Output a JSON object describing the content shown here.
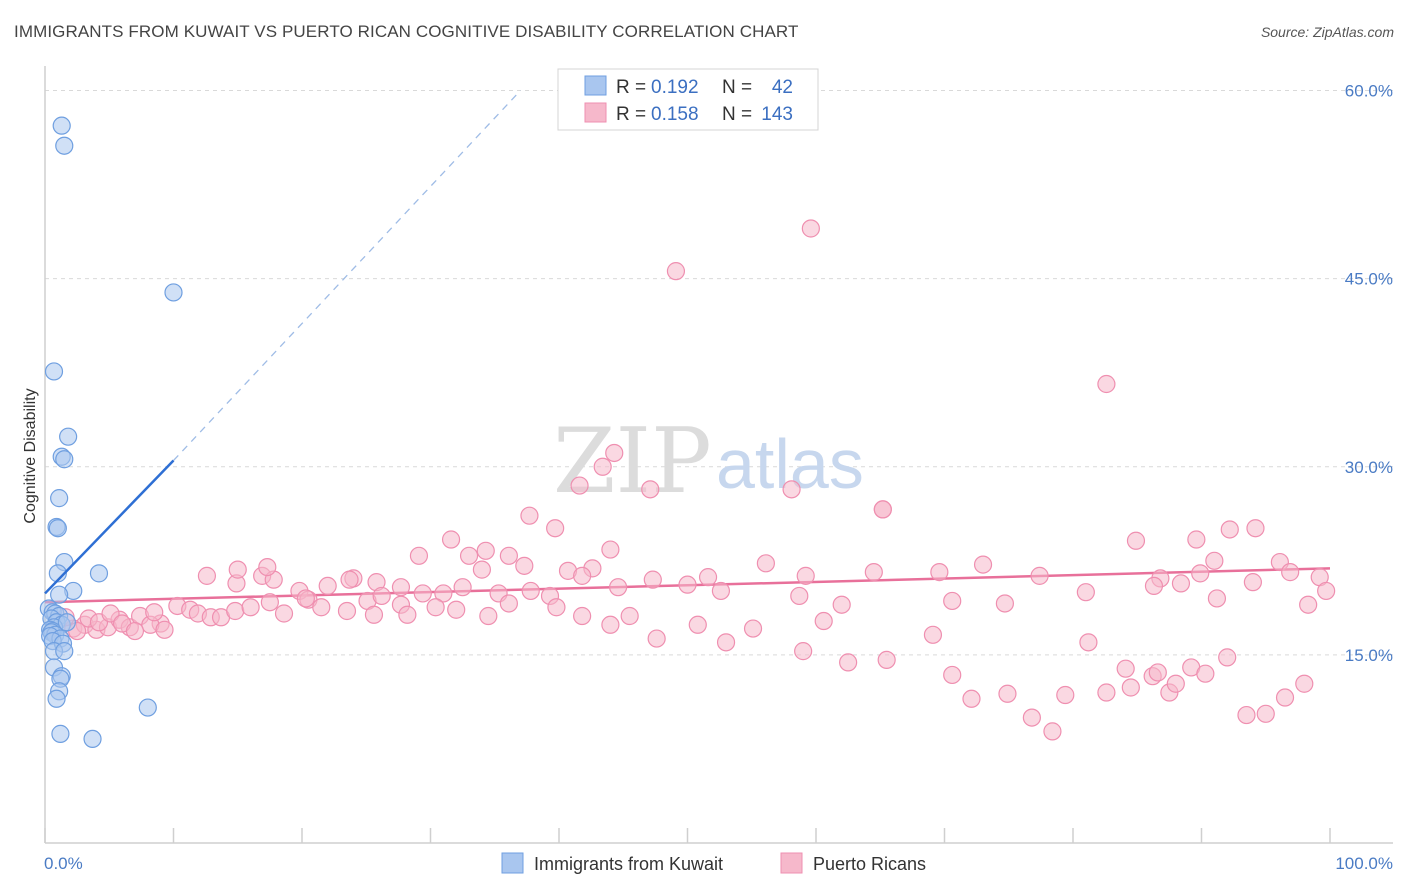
{
  "title": "IMMIGRANTS FROM KUWAIT VS PUERTO RICAN COGNITIVE DISABILITY CORRELATION CHART",
  "source": "Source: ZipAtlas.com",
  "watermark": {
    "part1": "ZIP",
    "part2": "atlas"
  },
  "colors": {
    "blue_fill": "#a9c6ef",
    "blue_stroke": "#6f9fe0",
    "blue_line": "#2e6fd4",
    "pink_fill": "#f6b8cb",
    "pink_stroke": "#ef8fb0",
    "pink_line": "#e8709a",
    "grid": "#d9d9d9",
    "axis": "#cfcfcf"
  },
  "legend": {
    "rows": [
      {
        "series": "blue",
        "r_label": "R =",
        "r_value": "0.192",
        "n_label": "N =",
        "n_value": "42"
      },
      {
        "series": "pink",
        "r_label": "R =",
        "r_value": "0.158",
        "n_label": "N =",
        "n_value": "143"
      }
    ]
  },
  "chart_data": {
    "type": "scatter",
    "title": "IMMIGRANTS FROM KUWAIT VS PUERTO RICAN COGNITIVE DISABILITY CORRELATION CHART",
    "xlabel": "",
    "ylabel": "Cognitive Disability",
    "xlim": [
      0,
      100
    ],
    "ylim": [
      0,
      61
    ],
    "x_tick_labels": [
      "0.0%",
      "100.0%"
    ],
    "y_ticks": [
      15,
      30,
      45,
      60
    ],
    "y_tick_labels": [
      "15.0%",
      "30.0%",
      "45.0%",
      "60.0%"
    ],
    "legend_bottom": [
      "Immigrants from Kuwait",
      "Puerto Ricans"
    ],
    "series": [
      {
        "name": "Immigrants from Kuwait",
        "color": "blue",
        "points": [
          [
            1.3,
            57.2
          ],
          [
            1.5,
            55.6
          ],
          [
            10.0,
            43.9
          ],
          [
            0.7,
            37.6
          ],
          [
            1.8,
            32.4
          ],
          [
            1.3,
            30.8
          ],
          [
            1.5,
            30.6
          ],
          [
            1.1,
            27.5
          ],
          [
            0.9,
            25.2
          ],
          [
            1.0,
            25.1
          ],
          [
            1.5,
            22.4
          ],
          [
            4.2,
            21.5
          ],
          [
            1.0,
            21.5
          ],
          [
            2.2,
            20.1
          ],
          [
            1.1,
            19.8
          ],
          [
            0.3,
            18.7
          ],
          [
            0.6,
            18.4
          ],
          [
            0.8,
            18.3
          ],
          [
            1.1,
            18.1
          ],
          [
            0.5,
            17.9
          ],
          [
            0.9,
            17.6
          ],
          [
            1.3,
            17.4
          ],
          [
            0.7,
            17.2
          ],
          [
            0.4,
            17.0
          ],
          [
            0.6,
            16.9
          ],
          [
            1.7,
            17.6
          ],
          [
            0.5,
            16.8
          ],
          [
            0.8,
            16.6
          ],
          [
            0.4,
            16.5
          ],
          [
            1.2,
            16.3
          ],
          [
            0.6,
            16.1
          ],
          [
            1.4,
            15.9
          ],
          [
            0.7,
            15.3
          ],
          [
            1.5,
            15.3
          ],
          [
            0.7,
            14.0
          ],
          [
            1.3,
            13.3
          ],
          [
            1.2,
            13.1
          ],
          [
            1.1,
            12.1
          ],
          [
            0.9,
            11.5
          ],
          [
            8.0,
            10.8
          ],
          [
            1.2,
            8.7
          ],
          [
            3.7,
            8.3
          ]
        ],
        "trend": {
          "solid_from": [
            0,
            19.9
          ],
          "solid_to": [
            10.0,
            30.5
          ],
          "dashed_to": [
            37.0,
            60.0
          ]
        }
      },
      {
        "name": "Puerto Ricans",
        "color": "pink",
        "points": [
          [
            59.6,
            49.0
          ],
          [
            49.1,
            45.6
          ],
          [
            82.6,
            36.6
          ],
          [
            44.3,
            31.1
          ],
          [
            43.4,
            30.0
          ],
          [
            41.6,
            28.5
          ],
          [
            47.1,
            28.2
          ],
          [
            58.1,
            28.2
          ],
          [
            65.2,
            26.6
          ],
          [
            65.2,
            26.6
          ],
          [
            37.7,
            26.1
          ],
          [
            42.6,
            21.9
          ],
          [
            39.7,
            25.1
          ],
          [
            92.2,
            25.0
          ],
          [
            94.2,
            25.1
          ],
          [
            84.9,
            24.1
          ],
          [
            89.6,
            24.2
          ],
          [
            31.6,
            24.2
          ],
          [
            44.0,
            23.4
          ],
          [
            34.3,
            23.3
          ],
          [
            29.1,
            22.9
          ],
          [
            33.0,
            22.9
          ],
          [
            36.1,
            22.9
          ],
          [
            37.3,
            22.1
          ],
          [
            56.1,
            22.3
          ],
          [
            73.0,
            22.2
          ],
          [
            91.0,
            22.5
          ],
          [
            96.1,
            22.4
          ],
          [
            12.6,
            21.3
          ],
          [
            14.9,
            20.7
          ],
          [
            16.9,
            21.3
          ],
          [
            24.0,
            21.1
          ],
          [
            25.8,
            20.8
          ],
          [
            34.0,
            21.8
          ],
          [
            40.7,
            21.7
          ],
          [
            41.8,
            21.3
          ],
          [
            51.6,
            21.2
          ],
          [
            59.2,
            21.3
          ],
          [
            64.5,
            21.6
          ],
          [
            69.6,
            21.6
          ],
          [
            77.4,
            21.3
          ],
          [
            86.8,
            21.1
          ],
          [
            89.9,
            21.5
          ],
          [
            94.0,
            20.8
          ],
          [
            96.9,
            21.6
          ],
          [
            99.2,
            21.2
          ],
          [
            17.8,
            21.0
          ],
          [
            15.0,
            21.8
          ],
          [
            17.3,
            22.0
          ],
          [
            19.8,
            20.1
          ],
          [
            20.5,
            19.4
          ],
          [
            22.0,
            20.5
          ],
          [
            23.7,
            21.0
          ],
          [
            25.1,
            19.3
          ],
          [
            26.2,
            19.7
          ],
          [
            27.7,
            20.4
          ],
          [
            29.4,
            19.9
          ],
          [
            31.0,
            19.9
          ],
          [
            32.5,
            20.4
          ],
          [
            35.3,
            19.9
          ],
          [
            37.8,
            20.1
          ],
          [
            39.3,
            19.7
          ],
          [
            44.6,
            20.4
          ],
          [
            47.3,
            21.0
          ],
          [
            50.0,
            20.6
          ],
          [
            52.6,
            20.1
          ],
          [
            58.7,
            19.7
          ],
          [
            62.0,
            19.0
          ],
          [
            70.6,
            19.3
          ],
          [
            74.7,
            19.1
          ],
          [
            81.0,
            20.0
          ],
          [
            86.3,
            20.5
          ],
          [
            88.4,
            20.7
          ],
          [
            91.2,
            19.5
          ],
          [
            98.3,
            19.0
          ],
          [
            99.7,
            20.1
          ],
          [
            9.0,
            17.5
          ],
          [
            10.3,
            18.9
          ],
          [
            11.3,
            18.6
          ],
          [
            11.9,
            18.3
          ],
          [
            12.9,
            18.0
          ],
          [
            13.7,
            18.0
          ],
          [
            14.8,
            18.5
          ],
          [
            16.0,
            18.8
          ],
          [
            17.5,
            19.2
          ],
          [
            18.6,
            18.3
          ],
          [
            20.3,
            19.5
          ],
          [
            21.5,
            18.8
          ],
          [
            23.5,
            18.5
          ],
          [
            25.6,
            18.2
          ],
          [
            27.7,
            19.0
          ],
          [
            28.2,
            18.2
          ],
          [
            30.4,
            18.8
          ],
          [
            32.0,
            18.6
          ],
          [
            34.5,
            18.1
          ],
          [
            36.1,
            19.1
          ],
          [
            39.8,
            18.8
          ],
          [
            41.8,
            18.1
          ],
          [
            44.0,
            17.4
          ],
          [
            45.5,
            18.1
          ],
          [
            47.6,
            16.3
          ],
          [
            50.8,
            17.4
          ],
          [
            53.0,
            16.0
          ],
          [
            55.1,
            17.1
          ],
          [
            59.0,
            15.3
          ],
          [
            60.6,
            17.7
          ],
          [
            62.5,
            14.4
          ],
          [
            65.5,
            14.6
          ],
          [
            69.1,
            16.6
          ],
          [
            70.6,
            13.4
          ],
          [
            72.1,
            11.5
          ],
          [
            74.9,
            11.9
          ],
          [
            76.8,
            10.0
          ],
          [
            78.4,
            8.9
          ],
          [
            79.4,
            11.8
          ],
          [
            81.2,
            16.0
          ],
          [
            82.6,
            12.0
          ],
          [
            84.1,
            13.9
          ],
          [
            84.5,
            12.4
          ],
          [
            86.2,
            13.3
          ],
          [
            87.5,
            12.0
          ],
          [
            89.2,
            14.0
          ],
          [
            86.6,
            13.6
          ],
          [
            88.0,
            12.7
          ],
          [
            90.3,
            13.5
          ],
          [
            92.0,
            14.8
          ],
          [
            93.5,
            10.2
          ],
          [
            95.0,
            10.3
          ],
          [
            96.5,
            11.6
          ],
          [
            98.0,
            12.7
          ],
          [
            2.2,
            17.1
          ],
          [
            3.1,
            17.4
          ],
          [
            4.0,
            17.0
          ],
          [
            4.9,
            17.2
          ],
          [
            5.8,
            17.8
          ],
          [
            6.6,
            17.2
          ],
          [
            7.4,
            18.1
          ],
          [
            8.2,
            17.4
          ],
          [
            9.3,
            17.0
          ],
          [
            1.6,
            18.0
          ],
          [
            2.5,
            16.9
          ],
          [
            3.4,
            17.9
          ],
          [
            4.2,
            17.6
          ],
          [
            5.1,
            18.3
          ],
          [
            6.0,
            17.5
          ],
          [
            7.0,
            16.9
          ],
          [
            8.5,
            18.4
          ]
        ],
        "trend": {
          "from": [
            0,
            19.2
          ],
          "to": [
            100,
            21.9
          ]
        }
      }
    ]
  }
}
